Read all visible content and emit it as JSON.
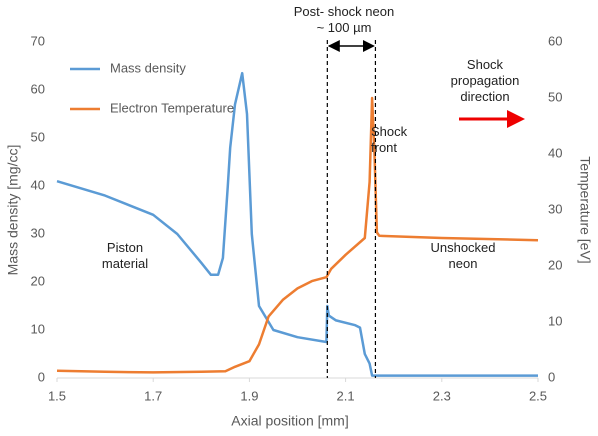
{
  "chart_data": {
    "type": "line",
    "xlabel": "Axial position [mm]",
    "ylabel": "Mass density [mg/cc]",
    "y2label": "Temperature [eV]",
    "xlim": [
      1.5,
      2.5
    ],
    "xticks": [
      1.5,
      1.7,
      1.9,
      2.1,
      2.3,
      2.5
    ],
    "ylim": [
      0,
      70
    ],
    "yticks": [
      0,
      10,
      20,
      30,
      40,
      50,
      60,
      70
    ],
    "y2lim": [
      0,
      60
    ],
    "y2ticks": [
      0,
      10,
      20,
      30,
      40,
      50,
      60
    ],
    "legend": "upper left",
    "vlines": [
      2.062,
      2.162
    ],
    "annotations": [
      "Post- shock neon",
      "~ 100 µm",
      "Shock front",
      "Piston material",
      "Unshocked neon",
      "Shock propagation direction"
    ],
    "series": [
      {
        "name": "Mass density",
        "color": "#5b9bd5",
        "x": [
          1.5,
          1.6,
          1.7,
          1.75,
          1.8,
          1.82,
          1.835,
          1.845,
          1.855,
          1.86,
          1.87,
          1.885,
          1.895,
          1.905,
          1.92,
          1.95,
          2.0,
          2.06,
          2.062,
          2.065,
          2.08,
          2.12,
          2.13,
          2.14,
          2.15,
          2.155,
          2.2,
          2.5
        ],
        "values": [
          41,
          38,
          34,
          30,
          24,
          21.5,
          21.5,
          25,
          40,
          48,
          57,
          63.5,
          55,
          30,
          15,
          10,
          8.5,
          7.5,
          15,
          13,
          12,
          11,
          10.5,
          5,
          3,
          0.5,
          0.5,
          0.5
        ]
      },
      {
        "name": "Electron Temperature",
        "color": "#ed7d31",
        "axis": "y2",
        "x": [
          1.5,
          1.6,
          1.7,
          1.8,
          1.85,
          1.87,
          1.9,
          1.92,
          1.94,
          1.97,
          2.0,
          2.03,
          2.06,
          2.07,
          2.1,
          2.14,
          2.15,
          2.155,
          2.16,
          2.165,
          2.17,
          2.3,
          2.5
        ],
        "values": [
          1.3,
          1.1,
          1,
          1.1,
          1.2,
          2,
          3,
          6,
          11,
          14,
          16,
          17.3,
          18,
          19.5,
          22,
          25,
          35,
          50,
          40,
          26,
          25.4,
          25,
          24.6
        ]
      }
    ]
  }
}
